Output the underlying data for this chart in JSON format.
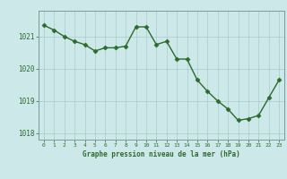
{
  "x": [
    0,
    1,
    2,
    3,
    4,
    5,
    6,
    7,
    8,
    9,
    10,
    11,
    12,
    13,
    14,
    15,
    16,
    17,
    18,
    19,
    20,
    21,
    22,
    23
  ],
  "y": [
    1021.35,
    1021.2,
    1021.0,
    1020.85,
    1020.75,
    1020.55,
    1020.65,
    1020.65,
    1020.7,
    1021.3,
    1021.3,
    1020.75,
    1020.85,
    1020.3,
    1020.3,
    1019.65,
    1019.3,
    1019.0,
    1018.75,
    1018.4,
    1018.45,
    1018.55,
    1019.1,
    1019.65
  ],
  "line_color": "#2d6a2d",
  "marker": "D",
  "marker_size": 2.5,
  "bg_color": "#cce8e8",
  "grid_color": "#aacccc",
  "xlabel": "Graphe pression niveau de la mer (hPa)",
  "xlabel_color": "#2d6a2d",
  "tick_color": "#2d6a2d",
  "ylim": [
    1017.8,
    1021.8
  ],
  "yticks": [
    1018,
    1019,
    1020,
    1021
  ],
  "xlim": [
    -0.5,
    23.5
  ],
  "xticks": [
    0,
    1,
    2,
    3,
    4,
    5,
    6,
    7,
    8,
    9,
    10,
    11,
    12,
    13,
    14,
    15,
    16,
    17,
    18,
    19,
    20,
    21,
    22,
    23
  ]
}
